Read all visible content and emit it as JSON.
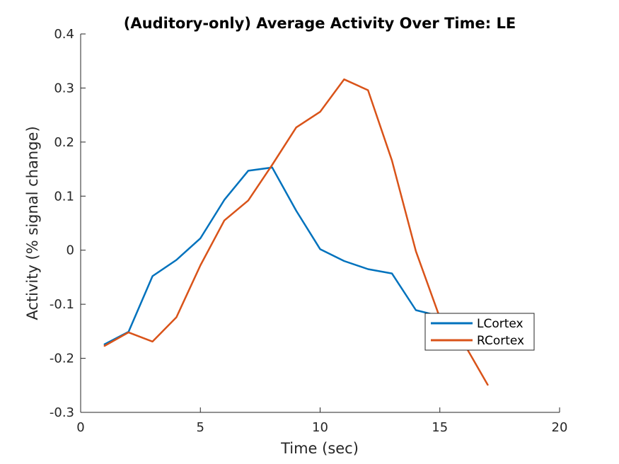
{
  "chart_data": {
    "type": "line",
    "title": "(Auditory-only) Average Activity Over Time: LE",
    "xlabel": "Time (sec)",
    "ylabel": "Activity (% signal change)",
    "xlim": [
      0,
      20
    ],
    "ylim": [
      -0.3,
      0.4
    ],
    "xticks": [
      0,
      5,
      10,
      15,
      20
    ],
    "yticks": [
      -0.3,
      -0.2,
      -0.1,
      0,
      0.1,
      0.2,
      0.3,
      0.4
    ],
    "xtick_labels": [
      "0",
      "5",
      "10",
      "15",
      "20"
    ],
    "ytick_labels": [
      "-0.3",
      "-0.2",
      "-0.1",
      "0",
      "0.1",
      "0.2",
      "0.3",
      "0.4"
    ],
    "grid": false,
    "legend_position": "inside, lower right",
    "series": [
      {
        "name": "LCortex",
        "color": "#0072BD",
        "x": [
          1,
          2,
          3,
          4,
          5,
          6,
          7,
          8,
          9,
          10,
          11,
          12,
          13,
          14,
          15,
          16,
          17
        ],
        "y": [
          -0.174,
          -0.151,
          -0.048,
          -0.018,
          0.022,
          0.093,
          0.147,
          0.153,
          0.073,
          0.002,
          -0.02,
          -0.035,
          -0.043,
          -0.111,
          -0.122,
          -0.137,
          -0.16
        ]
      },
      {
        "name": "RCortex",
        "color": "#D95319",
        "x": [
          1,
          2,
          3,
          4,
          5,
          6,
          7,
          8,
          9,
          10,
          11,
          12,
          13,
          14,
          15,
          16,
          17
        ],
        "y": [
          -0.177,
          -0.152,
          -0.169,
          -0.124,
          -0.028,
          0.055,
          0.092,
          0.158,
          0.227,
          0.256,
          0.316,
          0.296,
          0.166,
          -0.002,
          -0.125,
          -0.172,
          -0.249
        ]
      }
    ]
  }
}
